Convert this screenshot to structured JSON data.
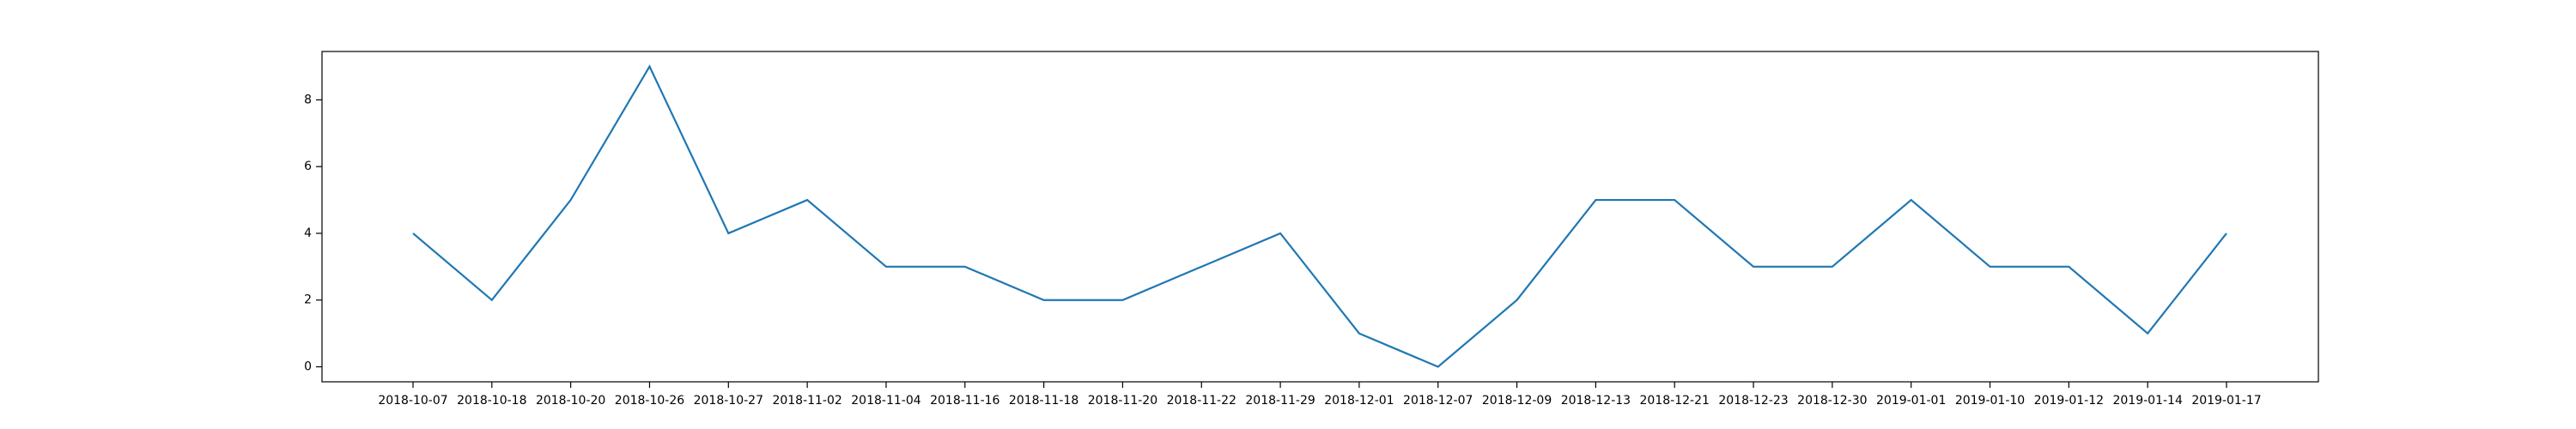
{
  "chart_data": {
    "type": "line",
    "x": [
      "2018-10-07",
      "2018-10-18",
      "2018-10-20",
      "2018-10-26",
      "2018-10-27",
      "2018-11-02",
      "2018-11-04",
      "2018-11-16",
      "2018-11-18",
      "2018-11-20",
      "2018-11-22",
      "2018-11-29",
      "2018-12-01",
      "2018-12-07",
      "2018-12-09",
      "2018-12-13",
      "2018-12-21",
      "2018-12-23",
      "2018-12-30",
      "2019-01-01",
      "2019-01-10",
      "2019-01-12",
      "2019-01-14",
      "2019-01-17"
    ],
    "series": [
      {
        "values": [
          4,
          2,
          5,
          9,
          4,
          5,
          3,
          3,
          2,
          2,
          3,
          4,
          1,
          0,
          2,
          5,
          5,
          3,
          3,
          5,
          3,
          3,
          1,
          4
        ]
      }
    ],
    "yticks": [
      0,
      2,
      4,
      6,
      8
    ],
    "ylim": [
      -0.45,
      9.45
    ],
    "line_color": "#1f77b4",
    "grid": false,
    "legend": "none"
  }
}
